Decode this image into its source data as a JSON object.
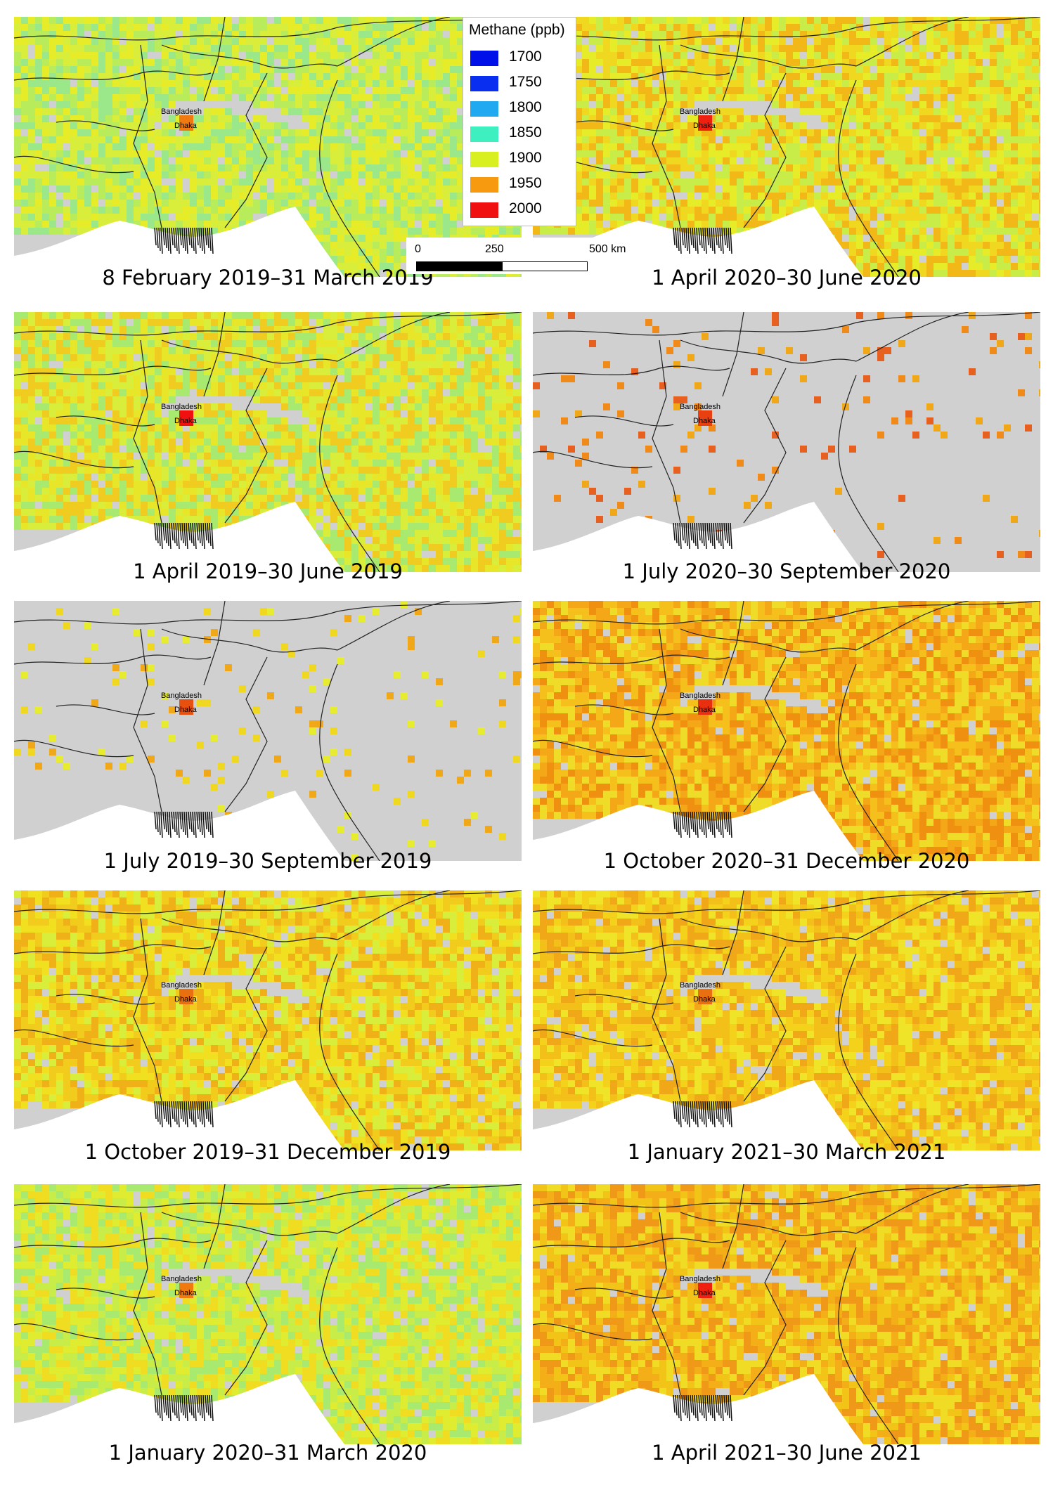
{
  "legend": {
    "title": "Methane (ppb)",
    "items": [
      {
        "label": "1700",
        "color": "#0010e8"
      },
      {
        "label": "1750",
        "color": "#0a2ef0"
      },
      {
        "label": "1800",
        "color": "#20a8f0"
      },
      {
        "label": "1850",
        "color": "#3ef0c0"
      },
      {
        "label": "1900",
        "color": "#d8f020"
      },
      {
        "label": "1950",
        "color": "#f89a10"
      },
      {
        "label": "2000",
        "color": "#f01010"
      }
    ]
  },
  "scale": {
    "labels": [
      "0",
      "250",
      "500 km"
    ]
  },
  "place_labels": {
    "country": "Bangladesh",
    "city": "Dhaka"
  },
  "panels": [
    {
      "caption": "8 February 2019–31 March 2019",
      "palette": [
        "#d8ee3a",
        "#b8ec5a",
        "#9ae88a",
        "#e6ec28"
      ],
      "hot": "#f07a10",
      "coverage": 0.95
    },
    {
      "caption": "1 April 2020–30 June 2020",
      "palette": [
        "#e6ec28",
        "#f0d820",
        "#c8ec48",
        "#f2b818"
      ],
      "hot": "#f02010",
      "coverage": 0.95
    },
    {
      "caption": "1 April 2019–30 June 2019",
      "palette": [
        "#d8ee3a",
        "#e8e628",
        "#a8ea70",
        "#f0cc20"
      ],
      "hot": "#f01010",
      "coverage": 0.95
    },
    {
      "caption": "1 July 2020–30 September 2020",
      "palette": [
        "#f08a18",
        "#f0a818",
        "#e86020"
      ],
      "hot": "#e84010",
      "coverage": 0.05
    },
    {
      "caption": "1 July 2019–30 September 2019",
      "palette": [
        "#f0d820",
        "#e8ec30",
        "#f0a818"
      ],
      "hot": "#e85010",
      "coverage": 0.05
    },
    {
      "caption": "1 October 2020–31 December 2020",
      "palette": [
        "#f4a818",
        "#f6c01c",
        "#f09010",
        "#eedc28"
      ],
      "hot": "#e83010",
      "coverage": 0.97
    },
    {
      "caption": "1 October 2019–31 December 2019",
      "palette": [
        "#f0e020",
        "#f2cc1c",
        "#d8ee3a",
        "#f0b018"
      ],
      "hot": "#e87010",
      "coverage": 0.95
    },
    {
      "caption": "1 January 2021–30 March 2021",
      "palette": [
        "#f4d21c",
        "#f2c018",
        "#f0e428",
        "#f0a818"
      ],
      "hot": "#e87010",
      "coverage": 0.96
    },
    {
      "caption": "1 January 2020–31 March 2020",
      "palette": [
        "#e0ec30",
        "#c8ec48",
        "#f0dc20",
        "#a8ea70"
      ],
      "hot": "#f07a10",
      "coverage": 0.95
    },
    {
      "caption": "1 April 2021–30 June 2021",
      "palette": [
        "#f2c418",
        "#f4ae18",
        "#f0dc24",
        "#f09818"
      ],
      "hot": "#f02010",
      "coverage": 0.97
    }
  ]
}
